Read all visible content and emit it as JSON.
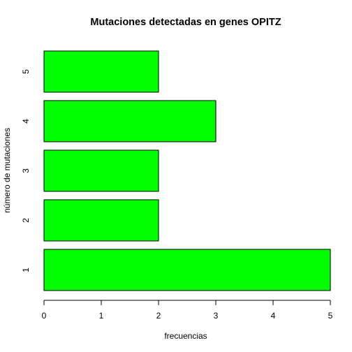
{
  "chart_data": {
    "type": "bar",
    "orientation": "horizontal",
    "title": "Mutaciones detectadas en genes OPITZ",
    "xlabel": "frecuencias",
    "ylabel": "número de mutaciones",
    "categories": [
      "1",
      "2",
      "3",
      "4",
      "5"
    ],
    "values": [
      5,
      2,
      2,
      3,
      2
    ],
    "xlim": [
      0,
      5
    ],
    "xticks": [
      "0",
      "1",
      "2",
      "3",
      "4",
      "5"
    ],
    "bar_color": "#00ff00",
    "bar_border_color": "#000000",
    "grid": false,
    "legend": "none"
  }
}
